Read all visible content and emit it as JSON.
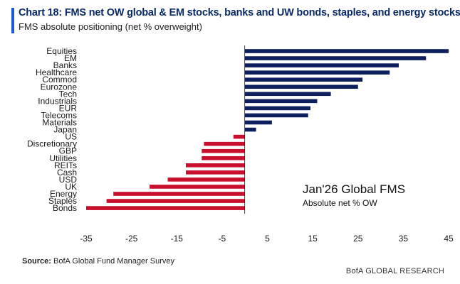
{
  "header": {
    "title": "Chart 18: FMS net OW global & EM stocks, banks and UW bonds, staples, and energy stocks",
    "subtitle": "FMS absolute positioning (net % overweight)"
  },
  "footer": {
    "source_label": "Source:",
    "source_text": " BofA Global Fund Manager Survey",
    "brand": "BofA GLOBAL RESEARCH"
  },
  "colors": {
    "positive": "#0d1f5c",
    "negative": "#c8102e",
    "accent": "#1a5ad6",
    "title": "#0a2a66"
  },
  "chart_data": {
    "type": "bar",
    "orientation": "horizontal",
    "title": "Jan'26 Global FMS",
    "subtitle": "Absolute net % OW",
    "categories": [
      "Equities",
      "EM",
      "Banks",
      "Healthcare",
      "Commod",
      "Eurozone",
      "Tech",
      "Industrials",
      "EUR",
      "Telecoms",
      "Materials",
      "Japan",
      "US",
      "Discretionary",
      "GBP",
      "Utilities",
      "REITs",
      "Cash",
      "USD",
      "UK",
      "Energy",
      "Staples",
      "Bonds"
    ],
    "values": [
      45,
      40,
      34,
      32,
      26,
      25,
      19,
      16,
      14.5,
      14,
      6,
      2.5,
      -2.5,
      -9,
      -9.5,
      -9.5,
      -13,
      -13,
      -17,
      -21,
      -29,
      -30.5,
      -35
    ],
    "xlim": [
      -35,
      45
    ],
    "xticks": [
      -35,
      -25,
      -15,
      -5,
      5,
      15,
      25,
      35,
      45
    ],
    "grid": false,
    "legend": "none"
  }
}
